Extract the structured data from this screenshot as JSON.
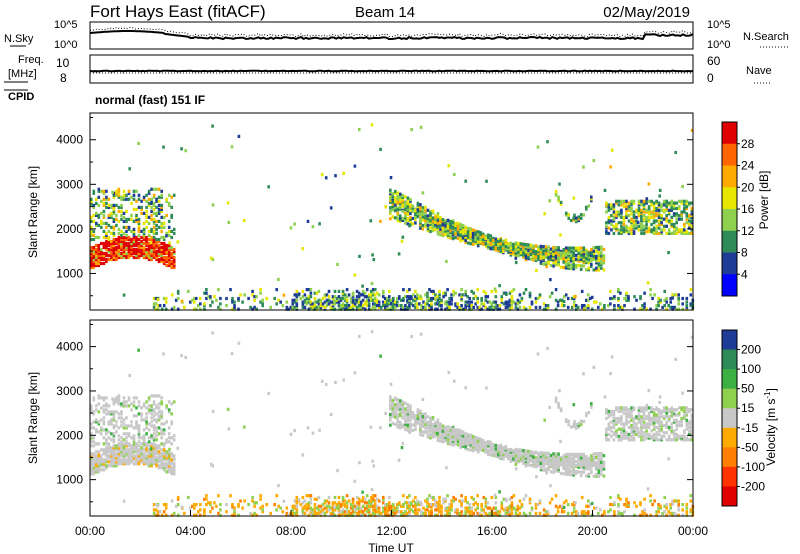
{
  "header": {
    "station": "Fort Hays East (fitACF)",
    "beam": "Beam 14",
    "date": "02/May/2019"
  },
  "params": {
    "nsky_label": "N.Sky",
    "nsearch_label": "N.Search",
    "freq_label_top": "Freq.",
    "freq_label_unit": "[MHz]",
    "nave_label": "Nave",
    "cpid_label": "CPID",
    "cpid_text": "normal (fast) 151 IF",
    "noise_ticks_left": [
      "10^5",
      "10^0"
    ],
    "noise_ticks_right": [
      "10^5",
      "10^0"
    ],
    "freq_ticks": [
      "10",
      "8"
    ],
    "nave_ticks": [
      "60",
      "0"
    ]
  },
  "chart_data": [
    {
      "type": "heatmap",
      "name": "power",
      "ylabel": "Slant Range [km]",
      "ylim": [
        180,
        4600
      ],
      "yticks": [
        1000,
        2000,
        3000,
        4000
      ],
      "xlim": [
        0,
        24
      ],
      "colorbar": {
        "label": "Power [dB]",
        "ticks": [
          "28",
          "24",
          "20",
          "16",
          "12",
          "8",
          "4"
        ],
        "colors": [
          "#e00000",
          "#ff6600",
          "#ffaa00",
          "#e6e600",
          "#8fd14f",
          "#2e8b57",
          "#1e3c96",
          "#0000ff"
        ]
      },
      "echo_bands": [
        {
          "t_start": 0.0,
          "t_end": 3.0,
          "range_start": 1100,
          "range_end": 1800,
          "level": "high"
        },
        {
          "t_start": 0.0,
          "t_end": 3.3,
          "range_start": 1800,
          "range_end": 3000,
          "level": "medium"
        },
        {
          "t_start": 12.0,
          "t_end": 20.5,
          "range_start": 1100,
          "range_end": 2900,
          "level": "medium"
        },
        {
          "t_start": 20.5,
          "t_end": 24.0,
          "range_start": 1900,
          "range_end": 2600,
          "level": "medium"
        },
        {
          "t_start": 3.0,
          "t_end": 24.0,
          "range_start": 180,
          "range_end": 600,
          "level": "low"
        }
      ]
    },
    {
      "type": "heatmap",
      "name": "velocity",
      "ylabel": "Slant Range [km]",
      "xlabel": "Time UT",
      "ylim": [
        180,
        4600
      ],
      "yticks": [
        1000,
        2000,
        3000,
        4000
      ],
      "xlim": [
        0,
        24
      ],
      "xticks": [
        "00:00",
        "04:00",
        "08:00",
        "12:00",
        "16:00",
        "20:00",
        "00:00"
      ],
      "colorbar": {
        "label_main": "Velocity [m s",
        "label_sup": "-1",
        "label_end": "]",
        "ticks": [
          "200",
          "100",
          "50",
          "15",
          "-15",
          "-50",
          "-100",
          "-200"
        ],
        "colors": [
          "#1e3c96",
          "#2e8b57",
          "#3cb043",
          "#8fd14f",
          "#c8c8c8",
          "#ffaa00",
          "#ff7f00",
          "#ff3300",
          "#e00000"
        ]
      }
    }
  ]
}
